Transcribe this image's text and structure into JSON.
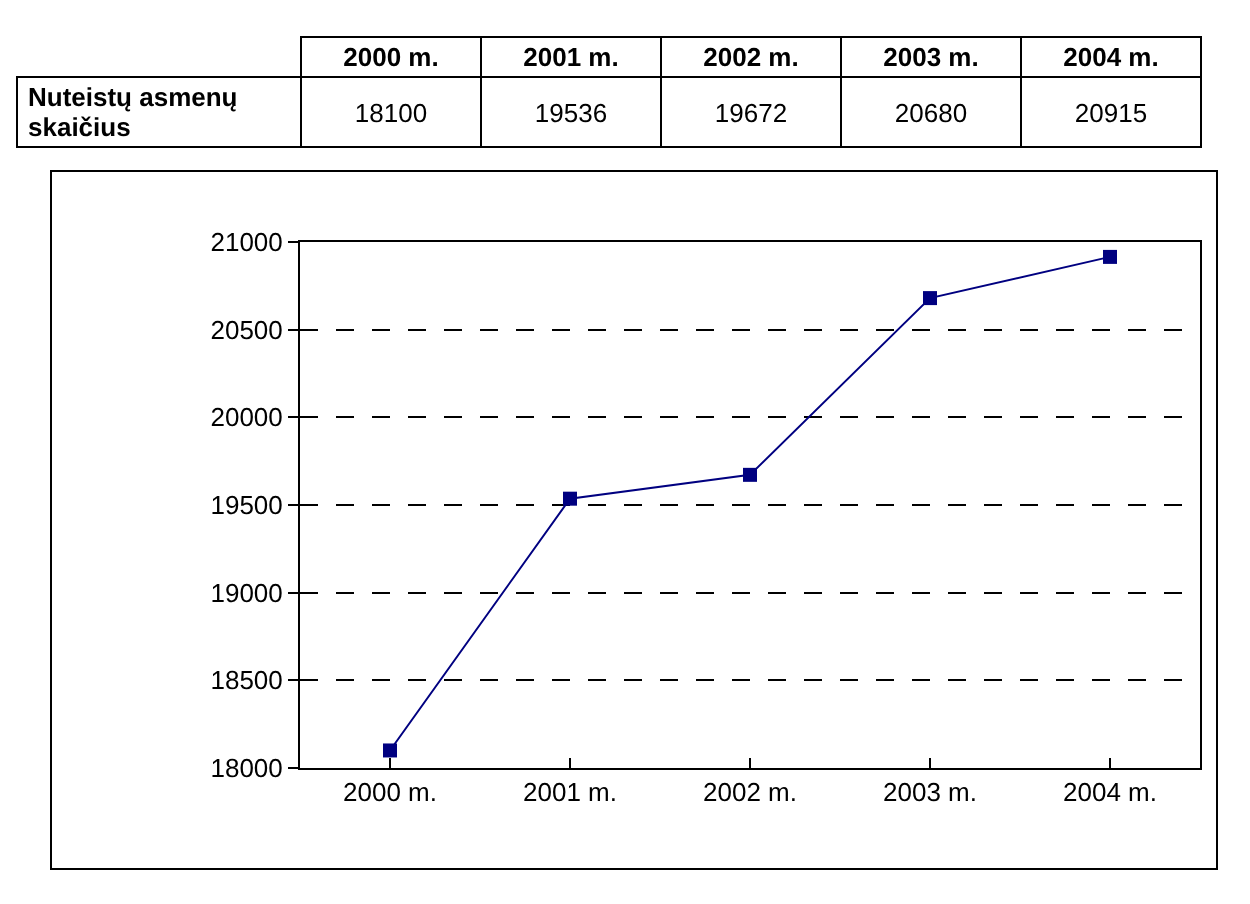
{
  "chart_data": {
    "type": "line",
    "categories": [
      "2000 m.",
      "2001 m.",
      "2002 m.",
      "2003 m.",
      "2004 m."
    ],
    "series": [
      {
        "name": "Nuteistų asmenų skaičius",
        "color": "#000080",
        "values": [
          18100,
          19536,
          19672,
          20680,
          20915
        ]
      }
    ],
    "ylim": [
      18000,
      21000
    ],
    "yticks": [
      18000,
      18500,
      19000,
      19500,
      20000,
      20500,
      21000
    ],
    "grid": "y",
    "marker": "square",
    "data_labels": true
  }
}
